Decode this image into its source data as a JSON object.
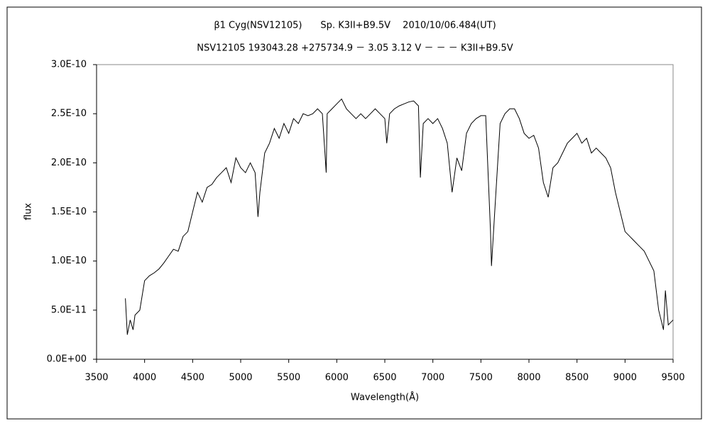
{
  "chart_data": {
    "type": "line",
    "title": "β1 Cyg(NSV12105)　　Sp. K3II+B9.5V　 2010/10/06.484(UT)",
    "subtitle": "NSV12105 193043.28 +275734.9 － 3.05 3.12 V － － － K3II+B9.5V",
    "x_label": "Wavelength(Å)",
    "y_label": "flux",
    "color": "#000000",
    "grid": false,
    "xlim": [
      3500,
      9500
    ],
    "xticks": [
      3500,
      4000,
      4500,
      5000,
      5500,
      6000,
      6500,
      7000,
      7500,
      8000,
      8500,
      9000,
      9500
    ],
    "ylim": [
      0,
      3e-10
    ],
    "yticks": [
      {
        "value": 0,
        "label": "0.0E+00"
      },
      {
        "value": 5e-11,
        "label": "5.0E-11"
      },
      {
        "value": 1e-10,
        "label": "1.0E-10"
      },
      {
        "value": 1.5e-10,
        "label": "1.5E-10"
      },
      {
        "value": 2e-10,
        "label": "2.0E-10"
      },
      {
        "value": 2.5e-10,
        "label": "2.5E-10"
      },
      {
        "value": 3e-10,
        "label": "3.0E-10"
      }
    ],
    "x": [
      3800,
      3820,
      3850,
      3880,
      3900,
      3950,
      4000,
      4050,
      4100,
      4150,
      4200,
      4250,
      4300,
      4350,
      4400,
      4450,
      4500,
      4550,
      4600,
      4650,
      4700,
      4750,
      4800,
      4850,
      4900,
      4950,
      5000,
      5050,
      5100,
      5150,
      5180,
      5200,
      5250,
      5300,
      5350,
      5400,
      5450,
      5500,
      5550,
      5600,
      5650,
      5700,
      5750,
      5800,
      5850,
      5890,
      5900,
      5950,
      6000,
      6050,
      6100,
      6150,
      6200,
      6250,
      6300,
      6350,
      6400,
      6450,
      6500,
      6520,
      6550,
      6600,
      6650,
      6700,
      6750,
      6800,
      6850,
      6870,
      6900,
      6950,
      7000,
      7050,
      7100,
      7150,
      7200,
      7250,
      7300,
      7350,
      7400,
      7450,
      7500,
      7550,
      7600,
      7610,
      7650,
      7700,
      7750,
      7800,
      7850,
      7900,
      7950,
      8000,
      8050,
      8100,
      8150,
      8200,
      8250,
      8300,
      8350,
      8400,
      8450,
      8500,
      8550,
      8600,
      8650,
      8700,
      8750,
      8800,
      8850,
      8900,
      8950,
      9000,
      9050,
      9100,
      9150,
      9200,
      9250,
      9300,
      9350,
      9400,
      9420,
      9450,
      9500
    ],
    "values": [
      6.2e-11,
      2.5e-11,
      4e-11,
      3e-11,
      4.5e-11,
      5e-11,
      8e-11,
      8.5e-11,
      8.8e-11,
      9.2e-11,
      9.8e-11,
      1.05e-10,
      1.12e-10,
      1.1e-10,
      1.25e-10,
      1.3e-10,
      1.5e-10,
      1.7e-10,
      1.6e-10,
      1.75e-10,
      1.78e-10,
      1.85e-10,
      1.9e-10,
      1.95e-10,
      1.8e-10,
      2.05e-10,
      1.95e-10,
      1.9e-10,
      2e-10,
      1.9e-10,
      1.45e-10,
      1.7e-10,
      2.1e-10,
      2.2e-10,
      2.35e-10,
      2.25e-10,
      2.4e-10,
      2.3e-10,
      2.45e-10,
      2.4e-10,
      2.5e-10,
      2.48e-10,
      2.5e-10,
      2.55e-10,
      2.5e-10,
      1.9e-10,
      2.5e-10,
      2.55e-10,
      2.6e-10,
      2.65e-10,
      2.55e-10,
      2.5e-10,
      2.45e-10,
      2.5e-10,
      2.45e-10,
      2.5e-10,
      2.55e-10,
      2.5e-10,
      2.45e-10,
      2.2e-10,
      2.5e-10,
      2.55e-10,
      2.58e-10,
      2.6e-10,
      2.62e-10,
      2.63e-10,
      2.58e-10,
      1.85e-10,
      2.4e-10,
      2.45e-10,
      2.4e-10,
      2.45e-10,
      2.35e-10,
      2.2e-10,
      1.7e-10,
      2.05e-10,
      1.92e-10,
      2.3e-10,
      2.4e-10,
      2.45e-10,
      2.48e-10,
      2.48e-10,
      1.3e-10,
      9.5e-11,
      1.6e-10,
      2.4e-10,
      2.5e-10,
      2.55e-10,
      2.55e-10,
      2.45e-10,
      2.3e-10,
      2.25e-10,
      2.28e-10,
      2.15e-10,
      1.8e-10,
      1.65e-10,
      1.95e-10,
      2e-10,
      2.1e-10,
      2.2e-10,
      2.25e-10,
      2.3e-10,
      2.2e-10,
      2.25e-10,
      2.1e-10,
      2.15e-10,
      2.1e-10,
      2.05e-10,
      1.95e-10,
      1.7e-10,
      1.5e-10,
      1.3e-10,
      1.25e-10,
      1.2e-10,
      1.15e-10,
      1.1e-10,
      1e-10,
      9e-11,
      5e-11,
      3e-11,
      7e-11,
      3.5e-11,
      4e-11
    ]
  }
}
